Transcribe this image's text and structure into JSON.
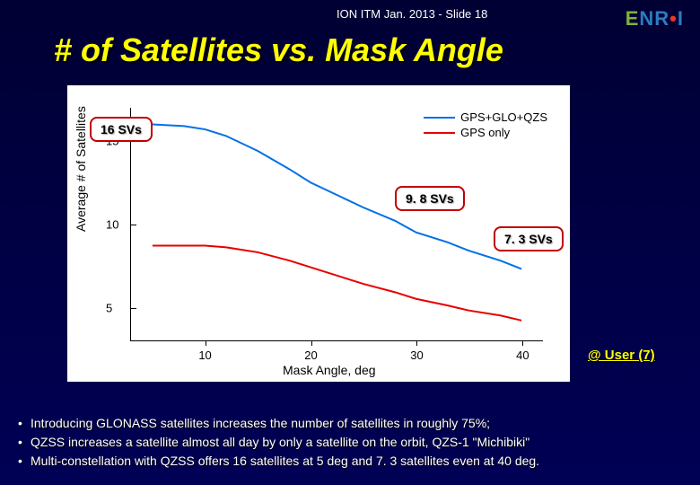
{
  "header": {
    "text": "ION ITM Jan. 2013 - Slide 18"
  },
  "logo": {
    "e": "E",
    "nri": "NR",
    "i": "I"
  },
  "title": "# of Satellites vs. Mask Angle",
  "chart": {
    "type": "line",
    "background_color": "#ffffff",
    "ylabel": "Average # of Satellites",
    "xlabel": "Mask Angle, deg",
    "xlim": [
      3,
      42
    ],
    "ylim": [
      3,
      17
    ],
    "xticks": [
      10,
      20,
      30,
      40
    ],
    "yticks": [
      5,
      10,
      15
    ],
    "label_fontsize": 14,
    "tick_fontsize": 13,
    "series": [
      {
        "name": "GPS+GLO+QZS",
        "color": "#0070e8",
        "line_width": 2,
        "x": [
          5,
          8,
          10,
          12,
          15,
          18,
          20,
          23,
          25,
          28,
          30,
          33,
          35,
          38,
          40
        ],
        "y": [
          16.0,
          15.9,
          15.7,
          15.3,
          14.4,
          13.3,
          12.5,
          11.6,
          11.0,
          10.2,
          9.5,
          8.9,
          8.4,
          7.8,
          7.3
        ]
      },
      {
        "name": "GPS only",
        "color": "#e80000",
        "line_width": 2,
        "x": [
          5,
          8,
          10,
          12,
          15,
          18,
          20,
          23,
          25,
          28,
          30,
          33,
          35,
          38,
          40
        ],
        "y": [
          8.7,
          8.7,
          8.7,
          8.6,
          8.3,
          7.8,
          7.4,
          6.8,
          6.4,
          5.9,
          5.5,
          5.1,
          4.8,
          4.5,
          4.2
        ]
      }
    ]
  },
  "legend": {
    "items": [
      {
        "label": "GPS+GLO+QZS",
        "color": "#0070e8"
      },
      {
        "label": "GPS only",
        "color": "#e80000"
      }
    ]
  },
  "callouts": {
    "a": "16 SVs",
    "b": "9. 8 SVs",
    "c": "7. 3 SVs"
  },
  "under_label": "@ User (7)",
  "bullets": [
    "Introducing GLONASS satellites increases the number of satellites in roughly 75%;",
    "QZSS increases a satellite almost all day by only a satellite on the orbit, QZS-1 \"Michibiki\"",
    "Multi-constellation with QZSS offers 16 satellites at 5 deg and 7. 3 satellites even at 40 deg."
  ]
}
